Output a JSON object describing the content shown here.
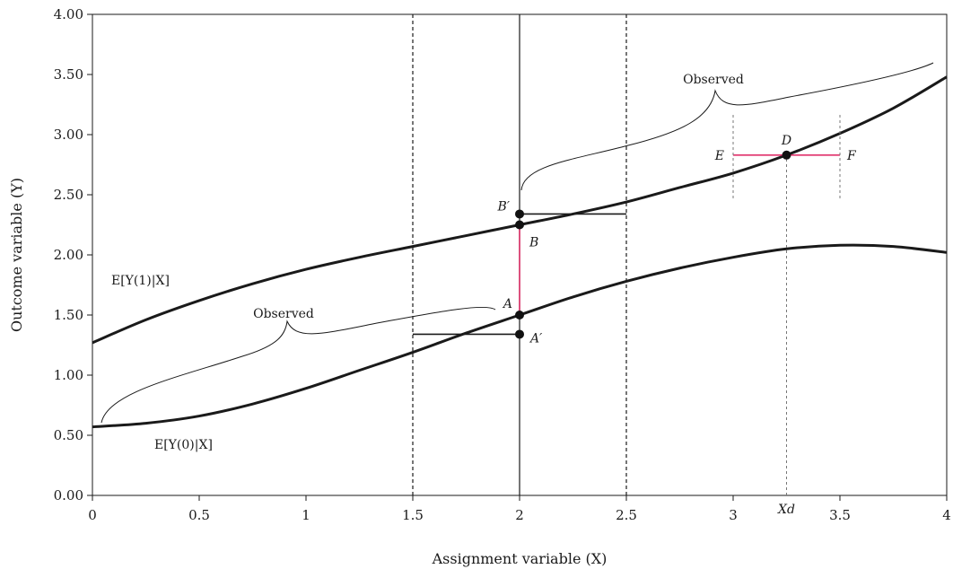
{
  "chart_data": {
    "type": "line",
    "title": "",
    "xlabel": "Assignment variable (X)",
    "ylabel": "Outcome variable (Y)",
    "xlim": [
      0,
      4
    ],
    "ylim": [
      0,
      4
    ],
    "x_ticks": [
      0,
      0.5,
      1,
      1.5,
      2,
      2.5,
      3,
      3.5,
      4
    ],
    "x_tick_labels": [
      "0",
      "0.5",
      "1",
      "1.5",
      "2",
      "2.5",
      "3",
      "3.5",
      "4"
    ],
    "y_ticks": [
      0,
      0.5,
      1,
      1.5,
      2,
      2.5,
      3,
      3.5,
      4
    ],
    "y_tick_labels": [
      "0.00",
      "0.50",
      "1.00",
      "1.50",
      "2.00",
      "2.50",
      "3.00",
      "3.50",
      "4.00"
    ],
    "grid": false,
    "series": [
      {
        "name": "E[Y(1)|X]",
        "x": [
          0,
          0.25,
          0.5,
          0.75,
          1,
          1.25,
          1.5,
          1.75,
          2,
          2.25,
          2.5,
          2.75,
          3,
          3.25,
          3.5,
          3.75,
          4
        ],
        "y": [
          1.27,
          1.46,
          1.62,
          1.76,
          1.88,
          1.98,
          2.07,
          2.16,
          2.25,
          2.34,
          2.44,
          2.56,
          2.68,
          2.83,
          3.01,
          3.22,
          3.48
        ]
      },
      {
        "name": "E[Y(0)|X]",
        "x": [
          0,
          0.25,
          0.5,
          0.75,
          1,
          1.25,
          1.5,
          1.75,
          2,
          2.25,
          2.5,
          2.75,
          3,
          3.25,
          3.5,
          3.75,
          4
        ],
        "y": [
          0.57,
          0.6,
          0.66,
          0.76,
          0.89,
          1.04,
          1.19,
          1.35,
          1.5,
          1.65,
          1.78,
          1.89,
          1.98,
          2.05,
          2.08,
          2.07,
          2.02
        ]
      }
    ],
    "reference_lines": [
      {
        "axis": "x",
        "value": 1.5,
        "style": "dashed"
      },
      {
        "axis": "x",
        "value": 2,
        "style": "solid"
      },
      {
        "axis": "x",
        "value": 2.5,
        "style": "dashed"
      }
    ],
    "points": [
      {
        "label": "B′",
        "x": 2,
        "y": 2.34
      },
      {
        "label": "B",
        "x": 2,
        "y": 2.25
      },
      {
        "label": "A",
        "x": 2,
        "y": 1.5
      },
      {
        "label": "A′",
        "x": 2,
        "y": 1.34
      },
      {
        "label": "D",
        "x": 3.25,
        "y": 2.83
      }
    ],
    "segments": [
      {
        "name": "b-prime-bar",
        "x1": 2,
        "y1": 2.34,
        "x2": 2.5,
        "y2": 2.34,
        "color": "#1a1a1a"
      },
      {
        "name": "a-prime-bar",
        "x1": 1.5,
        "y1": 1.34,
        "x2": 2,
        "y2": 1.34,
        "color": "#1a1a1a"
      },
      {
        "name": "a-b-gap",
        "x1": 2,
        "y1": 1.5,
        "x2": 2,
        "y2": 2.25,
        "color": "#e0306a"
      },
      {
        "name": "e-f-bar",
        "x1": 3,
        "y1": 2.83,
        "x2": 3.5,
        "y2": 2.83,
        "color": "#e0306a"
      },
      {
        "name": "e-guide",
        "x1": 3,
        "y1": 2.47,
        "x2": 3,
        "y2": 3.17,
        "color": "#777777",
        "dashed": true
      },
      {
        "name": "f-guide",
        "x1": 3.5,
        "y1": 2.47,
        "x2": 3.5,
        "y2": 3.17,
        "color": "#777777",
        "dashed": true
      },
      {
        "name": "xd-guide",
        "x1": 3.25,
        "y1": 0,
        "x2": 3.25,
        "y2": 2.83,
        "color": "#777777",
        "dashed": true
      }
    ],
    "text_labels": {
      "curve_y1": "E[Y(1)|X]",
      "curve_y0": "E[Y(0)|X]",
      "observed_upper": "Observed",
      "observed_lower": "Observed",
      "point_e": "E",
      "point_f": "F",
      "xd": "Xd"
    },
    "colors": {
      "curve": "#1a1a1a",
      "highlight": "#e0306a",
      "guide": "#777777"
    }
  }
}
